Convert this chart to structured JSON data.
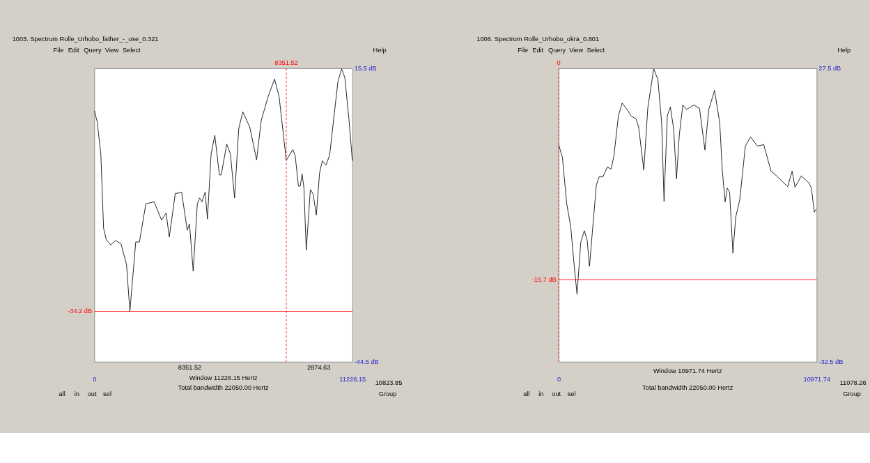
{
  "chart_data": [
    {
      "type": "line",
      "title": "1003. Spectrum Rolle_Urhobo_father_-_ose_0.321",
      "x": [
        0,
        120,
        280,
        400,
        520,
        720,
        920,
        1160,
        1400,
        1545,
        1800,
        1960,
        2240,
        2600,
        2920,
        3120,
        3260,
        3520,
        3800,
        4040,
        4140,
        4300,
        4480,
        4580,
        4680,
        4820,
        4920,
        5080,
        5240,
        5440,
        5520,
        5760,
        5920,
        6100,
        6280,
        6460,
        6760,
        7060,
        7260,
        7560,
        7840,
        8040,
        8350,
        8640,
        8740,
        8880,
        8960,
        9040,
        9120,
        9220,
        9400,
        9520,
        9660,
        9800,
        9920,
        10080,
        10240,
        10440,
        10600,
        10760,
        10900,
        11080,
        11226
      ],
      "series": [
        {
          "color": "#000000",
          "values": [
            6.8,
            4.6,
            -2.0,
            -17.2,
            -19.6,
            -20.6,
            -19.7,
            -20.4,
            -24.7,
            -34.2,
            -20.0,
            -20.0,
            -12.2,
            -11.8,
            -15.5,
            -14.1,
            -19.0,
            -10.1,
            -9.9,
            -17.6,
            -16.3,
            -26.0,
            -12.2,
            -11.0,
            -11.8,
            -9.8,
            -15.3,
            -2.0,
            1.8,
            -6.3,
            -6.3,
            0.0,
            -2.0,
            -11.0,
            3.1,
            6.6,
            3.5,
            -3.2,
            4.8,
            9.7,
            13.3,
            9.7,
            -3.3,
            -1.1,
            -2.4,
            -8.6,
            -8.6,
            -6.1,
            -9.0,
            -21.7,
            -9.3,
            -10.2,
            -14.5,
            -5.9,
            -3.4,
            -4.3,
            -2.2,
            6.2,
            12.8,
            15.4,
            13.6,
            5.0,
            -3.4
          ]
        }
      ],
      "xlim": [
        0,
        11226.15
      ],
      "ylim": [
        -44.5,
        15.5
      ],
      "xticks": [
        0,
        {
          "value": 11226.15,
          "label": "11226.15"
        }
      ],
      "yticks": [
        {
          "value": 15.5,
          "label": "15.5 dB"
        },
        {
          "value": -44.5,
          "label": "-44.5 dB"
        }
      ],
      "ref_lines": [
        {
          "axis": "y",
          "value": -34.2,
          "label": "-34.2 dB",
          "color": "#ff0000",
          "line_style": "solid"
        },
        {
          "axis": "x",
          "value": 8351.52,
          "label": "8351.52",
          "color": "#ff0000",
          "line_style": "dashed"
        }
      ],
      "annotations": [
        "8351.52",
        "2874.63",
        "Window 11226.15 Hertz",
        "10823.85",
        "Total bandwidth 22050.00 Hertz",
        "File",
        "Edit",
        "Query",
        "View",
        "Select",
        "Help",
        "all",
        "in",
        "out",
        "sel",
        "Group"
      ]
    },
    {
      "type": "line",
      "title": "1006. Spectrum Rolle_Urhobo_okra_0.801",
      "x": [
        0,
        160,
        340,
        510,
        670,
        780,
        940,
        1090,
        1210,
        1310,
        1410,
        1600,
        1720,
        1880,
        2070,
        2230,
        2350,
        2540,
        2700,
        2890,
        3090,
        3290,
        3400,
        3620,
        3790,
        4040,
        4220,
        4380,
        4480,
        4620,
        4750,
        4890,
        5010,
        5130,
        5280,
        5440,
        5750,
        5990,
        6220,
        6380,
        6630,
        6850,
        6960,
        7080,
        7170,
        7270,
        7410,
        7530,
        7700,
        7940,
        8160,
        8450,
        8720,
        9030,
        9270,
        9740,
        9930,
        10050,
        10320,
        10640,
        10750,
        10870,
        10950
      ],
      "series": [
        {
          "color": "#000000",
          "values": [
            11.9,
            9.2,
            -0.2,
            -4.8,
            -13.4,
            -18.7,
            -8.0,
            -5.7,
            -7.6,
            -13.0,
            -7.2,
            3.6,
            5.3,
            5.3,
            7.3,
            6.9,
            9.6,
            17.8,
            20.4,
            19.2,
            17.7,
            17.2,
            15.5,
            6.7,
            19.4,
            27.4,
            25.2,
            16.3,
            0.3,
            17.8,
            19.6,
            15.1,
            4.9,
            13.9,
            20.0,
            19.1,
            20.0,
            19.3,
            10.8,
            19.0,
            23.0,
            16.3,
            6.5,
            0.2,
            3.0,
            2.2,
            -10.3,
            -2.9,
            0.6,
            11.6,
            13.5,
            11.6,
            11.9,
            6.5,
            5.5,
            3.3,
            6.5,
            3.2,
            5.5,
            4.1,
            3.0,
            -1.9,
            -1.3
          ]
        }
      ],
      "xlim": [
        0,
        10971.74
      ],
      "ylim": [
        -32.5,
        27.5
      ],
      "xticks": [
        0,
        {
          "value": 10971.74,
          "label": "10971.74"
        }
      ],
      "yticks": [
        {
          "value": 27.5,
          "label": "27.5 dB"
        },
        {
          "value": -32.5,
          "label": "-32.5 dB"
        }
      ],
      "ref_lines": [
        {
          "axis": "y",
          "value": -15.7,
          "label": "-15.7 dB",
          "color": "#ff0000",
          "line_style": "solid"
        },
        {
          "axis": "x",
          "value": 0,
          "label": "0",
          "color": "#ff0000",
          "line_style": "dashed"
        }
      ],
      "annotations": [
        "Window 10971.74 Hertz",
        "11078.26",
        "Total bandwidth 22050.00 Hertz",
        "File",
        "Edit",
        "Query",
        "View",
        "Select",
        "Help",
        "all",
        "in",
        "out",
        "sel",
        "Group"
      ]
    }
  ]
}
